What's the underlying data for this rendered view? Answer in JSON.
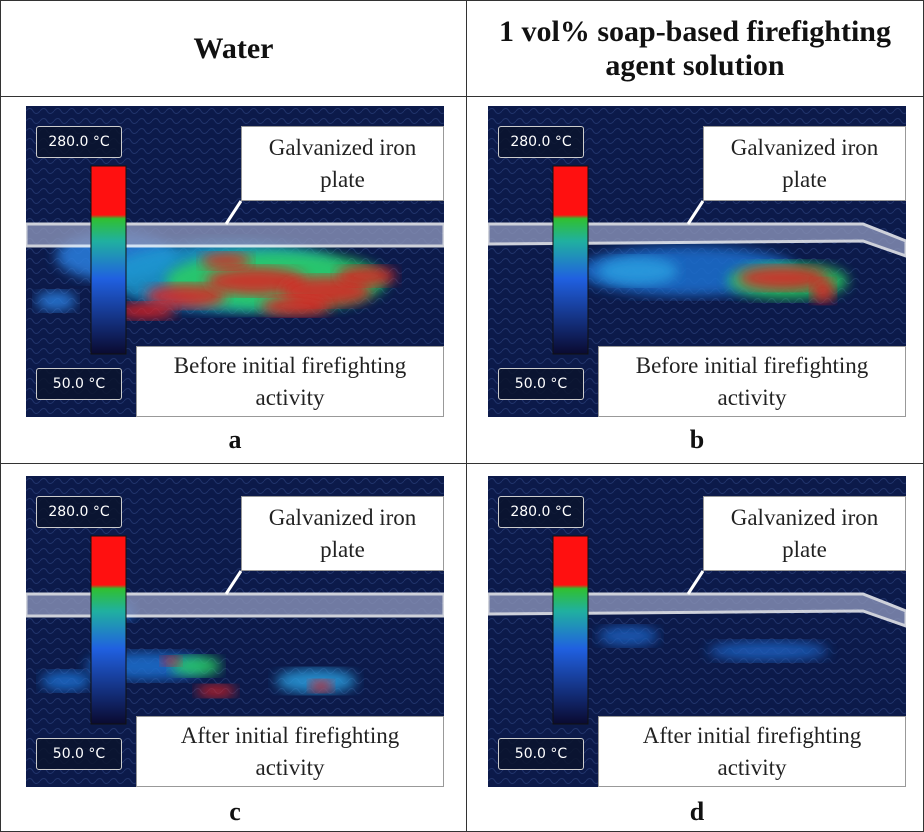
{
  "header": {
    "columns": [
      "Water",
      "1 vol% soap-based firefighting agent solution"
    ]
  },
  "panels": [
    {
      "label": "a",
      "max_temp": "280.0 °C",
      "min_temp": "50.0 °C",
      "plate_label": "Galvanized iron plate",
      "stage_label": "Before initial firefighting activity"
    },
    {
      "label": "b",
      "max_temp": "280.0 °C",
      "min_temp": "50.0 °C",
      "plate_label": "Galvanized iron plate",
      "stage_label": "Before initial firefighting activity"
    },
    {
      "label": "c",
      "max_temp": "280.0 °C",
      "min_temp": "50.0 °C",
      "plate_label": "Galvanized iron plate",
      "stage_label": "After initial firefighting activity"
    },
    {
      "label": "d",
      "max_temp": "280.0 °C",
      "min_temp": "50.0 °C",
      "plate_label": "Galvanized iron plate",
      "stage_label": "After initial firefighting activity"
    }
  ]
}
